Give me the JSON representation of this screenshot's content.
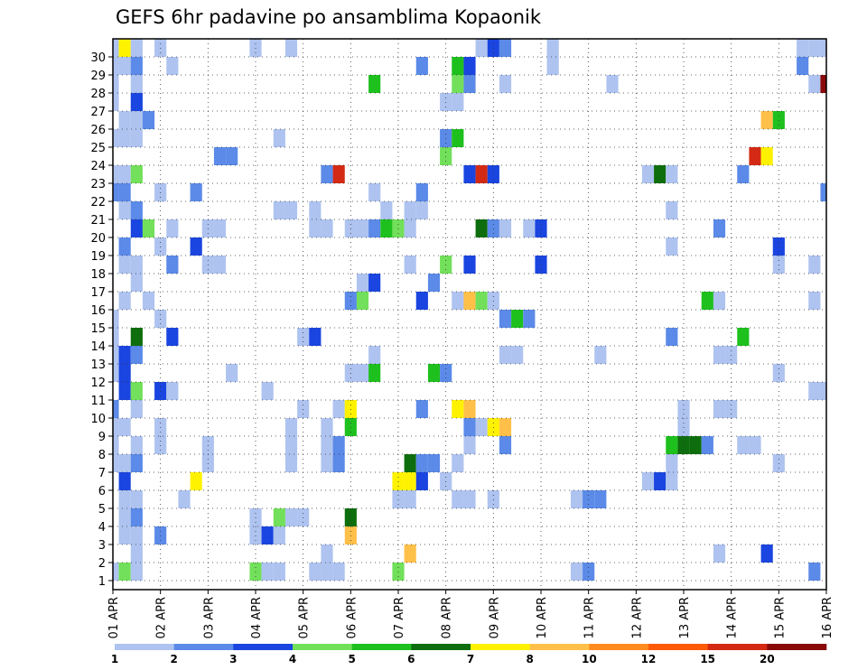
{
  "chart_data": {
    "type": "heatmap",
    "title": "GEFS 6hr padavine po ansamblima Kopaonik",
    "xlabel": "",
    "ylabel": "",
    "x_tick_labels": [
      "01 APR",
      "02 APR",
      "03 APR",
      "04 APR",
      "05 APR",
      "06 APR",
      "07 APR",
      "08 APR",
      "09 APR",
      "10 APR",
      "11 APR",
      "12 APR",
      "13 APR",
      "14 APR",
      "15 APR",
      "16 APR"
    ],
    "y_tick_labels": [
      "1",
      "2",
      "3",
      "4",
      "5",
      "6",
      "7",
      "8",
      "9",
      "10",
      "11",
      "12",
      "13",
      "14",
      "15",
      "16",
      "17",
      "18",
      "19",
      "20",
      "21",
      "22",
      "23",
      "24",
      "25",
      "26",
      "27",
      "28",
      "29",
      "30"
    ],
    "x_range_days": [
      0,
      15
    ],
    "y_range_member": [
      0,
      30
    ],
    "step_hours": 6,
    "grid": "dotted",
    "legend_placement": "bottom",
    "legend": {
      "labels": [
        "1",
        "2",
        "3",
        "4",
        "5",
        "6",
        "7",
        "8",
        "10",
        "12",
        "15",
        "20"
      ],
      "colors": [
        "#aec3f0",
        "#5b8ae8",
        "#1a45e0",
        "#72e05a",
        "#1ec01e",
        "#0e6e0e",
        "#fff200",
        "#ffc04a",
        "#ff8a1e",
        "#ff5a0a",
        "#d42a14",
        "#8a0a0a"
      ]
    },
    "cells": [
      {
        "m": 30,
        "s": [
          [
            1,
            1
          ],
          [
            2,
            7
          ],
          [
            3,
            1
          ],
          [
            5,
            1
          ],
          [
            13,
            1
          ],
          [
            16,
            1
          ],
          [
            32,
            1
          ],
          [
            33,
            3
          ],
          [
            34,
            2
          ],
          [
            38,
            1
          ],
          [
            59,
            1
          ],
          [
            60,
            1
          ],
          [
            61,
            1
          ]
        ]
      },
      {
        "m": 29,
        "s": [
          [
            1,
            1
          ],
          [
            2,
            1
          ],
          [
            3,
            2
          ],
          [
            6,
            1
          ],
          [
            27,
            2
          ],
          [
            30,
            5
          ],
          [
            31,
            3
          ],
          [
            38,
            1
          ],
          [
            59,
            2
          ]
        ]
      },
      {
        "m": 28,
        "s": [
          [
            1,
            1
          ],
          [
            3,
            1
          ],
          [
            23,
            5
          ],
          [
            30,
            4
          ],
          [
            31,
            2
          ],
          [
            34,
            1
          ],
          [
            43,
            1
          ],
          [
            60,
            1
          ],
          [
            61,
            12
          ]
        ]
      },
      {
        "m": 27,
        "s": [
          [
            1,
            1
          ],
          [
            3,
            3
          ],
          [
            29,
            1
          ],
          [
            30,
            1
          ]
        ]
      },
      {
        "m": 26,
        "s": [
          [
            2,
            1
          ],
          [
            3,
            1
          ],
          [
            4,
            2
          ],
          [
            56,
            8
          ],
          [
            57,
            5
          ]
        ]
      },
      {
        "m": 25,
        "s": [
          [
            1,
            1
          ],
          [
            2,
            1
          ],
          [
            3,
            1
          ],
          [
            15,
            1
          ],
          [
            29,
            2
          ],
          [
            30,
            5
          ]
        ]
      },
      {
        "m": 24,
        "s": [
          [
            10,
            2
          ],
          [
            11,
            2
          ],
          [
            29,
            4
          ],
          [
            55,
            11
          ],
          [
            56,
            7
          ]
        ]
      },
      {
        "m": 23,
        "s": [
          [
            1,
            1
          ],
          [
            2,
            1
          ],
          [
            3,
            4
          ],
          [
            19,
            2
          ],
          [
            20,
            11
          ],
          [
            31,
            3
          ],
          [
            32,
            11
          ],
          [
            33,
            3
          ],
          [
            46,
            1
          ],
          [
            47,
            6
          ],
          [
            48,
            1
          ],
          [
            54,
            2
          ]
        ]
      },
      {
        "m": 22,
        "s": [
          [
            1,
            2
          ],
          [
            2,
            2
          ],
          [
            5,
            1
          ],
          [
            8,
            2
          ],
          [
            23,
            1
          ],
          [
            27,
            2
          ],
          [
            61,
            2
          ]
        ]
      },
      {
        "m": 21,
        "s": [
          [
            2,
            1
          ],
          [
            3,
            2
          ],
          [
            15,
            1
          ],
          [
            16,
            1
          ],
          [
            18,
            1
          ],
          [
            24,
            1
          ],
          [
            26,
            1
          ],
          [
            27,
            1
          ],
          [
            48,
            1
          ]
        ]
      },
      {
        "m": 20,
        "s": [
          [
            3,
            3
          ],
          [
            4,
            4
          ],
          [
            6,
            1
          ],
          [
            9,
            1
          ],
          [
            10,
            1
          ],
          [
            18,
            1
          ],
          [
            19,
            1
          ],
          [
            21,
            1
          ],
          [
            22,
            1
          ],
          [
            23,
            2
          ],
          [
            24,
            5
          ],
          [
            25,
            4
          ],
          [
            26,
            1
          ],
          [
            32,
            6
          ],
          [
            33,
            2
          ],
          [
            34,
            1
          ],
          [
            36,
            1
          ],
          [
            37,
            3
          ],
          [
            52,
            2
          ]
        ]
      },
      {
        "m": 19,
        "s": [
          [
            2,
            2
          ],
          [
            5,
            1
          ],
          [
            8,
            3
          ],
          [
            48,
            1
          ],
          [
            57,
            3
          ]
        ]
      },
      {
        "m": 18,
        "s": [
          [
            2,
            1
          ],
          [
            3,
            1
          ],
          [
            6,
            2
          ],
          [
            9,
            1
          ],
          [
            10,
            1
          ],
          [
            26,
            1
          ],
          [
            29,
            4
          ],
          [
            31,
            3
          ],
          [
            37,
            3
          ],
          [
            57,
            1
          ],
          [
            60,
            1
          ]
        ]
      },
      {
        "m": 17,
        "s": [
          [
            3,
            1
          ],
          [
            22,
            1
          ],
          [
            23,
            3
          ],
          [
            28,
            2
          ]
        ]
      },
      {
        "m": 16,
        "s": [
          [
            2,
            1
          ],
          [
            4,
            1
          ],
          [
            21,
            2
          ],
          [
            22,
            4
          ],
          [
            27,
            3
          ],
          [
            30,
            1
          ],
          [
            31,
            8
          ],
          [
            32,
            4
          ],
          [
            33,
            1
          ],
          [
            51,
            5
          ],
          [
            52,
            1
          ],
          [
            60,
            1
          ]
        ]
      },
      {
        "m": 15,
        "s": [
          [
            1,
            1
          ],
          [
            5,
            1
          ],
          [
            34,
            2
          ],
          [
            35,
            5
          ],
          [
            36,
            2
          ]
        ]
      },
      {
        "m": 14,
        "s": [
          [
            1,
            1
          ],
          [
            3,
            6
          ],
          [
            6,
            3
          ],
          [
            17,
            1
          ],
          [
            18,
            3
          ],
          [
            48,
            2
          ],
          [
            54,
            5
          ]
        ]
      },
      {
        "m": 13,
        "s": [
          [
            1,
            1
          ],
          [
            2,
            3
          ],
          [
            3,
            2
          ],
          [
            23,
            1
          ],
          [
            34,
            1
          ],
          [
            35,
            1
          ],
          [
            42,
            1
          ],
          [
            52,
            1
          ],
          [
            53,
            1
          ]
        ]
      },
      {
        "m": 12,
        "s": [
          [
            1,
            1
          ],
          [
            2,
            3
          ],
          [
            11,
            1
          ],
          [
            21,
            1
          ],
          [
            22,
            1
          ],
          [
            23,
            5
          ],
          [
            28,
            5
          ],
          [
            29,
            2
          ],
          [
            57,
            1
          ]
        ]
      },
      {
        "m": 11,
        "s": [
          [
            2,
            3
          ],
          [
            3,
            4
          ],
          [
            5,
            3
          ],
          [
            6,
            1
          ],
          [
            14,
            1
          ],
          [
            60,
            1
          ],
          [
            61,
            1
          ]
        ]
      },
      {
        "m": 10,
        "s": [
          [
            1,
            2
          ],
          [
            3,
            1
          ],
          [
            17,
            1
          ],
          [
            20,
            1
          ],
          [
            21,
            7
          ],
          [
            27,
            2
          ],
          [
            30,
            7
          ],
          [
            31,
            8
          ],
          [
            49,
            1
          ],
          [
            52,
            1
          ],
          [
            53,
            1
          ]
        ]
      },
      {
        "m": 9,
        "s": [
          [
            1,
            1
          ],
          [
            2,
            1
          ],
          [
            5,
            1
          ],
          [
            16,
            1
          ],
          [
            19,
            1
          ],
          [
            21,
            5
          ],
          [
            31,
            2
          ],
          [
            32,
            1
          ],
          [
            33,
            7
          ],
          [
            34,
            8
          ],
          [
            49,
            1
          ]
        ]
      },
      {
        "m": 8,
        "s": [
          [
            1,
            1
          ],
          [
            3,
            1
          ],
          [
            5,
            1
          ],
          [
            9,
            1
          ],
          [
            16,
            1
          ],
          [
            19,
            1
          ],
          [
            20,
            2
          ],
          [
            31,
            1
          ],
          [
            34,
            2
          ],
          [
            48,
            5
          ],
          [
            49,
            6
          ],
          [
            50,
            6
          ],
          [
            51,
            2
          ],
          [
            54,
            1
          ],
          [
            55,
            1
          ]
        ]
      },
      {
        "m": 7,
        "s": [
          [
            1,
            1
          ],
          [
            2,
            1
          ],
          [
            3,
            2
          ],
          [
            9,
            1
          ],
          [
            16,
            1
          ],
          [
            19,
            1
          ],
          [
            20,
            2
          ],
          [
            26,
            6
          ],
          [
            27,
            2
          ],
          [
            28,
            2
          ],
          [
            30,
            1
          ],
          [
            48,
            1
          ],
          [
            57,
            1
          ]
        ]
      },
      {
        "m": 6,
        "s": [
          [
            2,
            3
          ],
          [
            8,
            7
          ],
          [
            25,
            7
          ],
          [
            26,
            7
          ],
          [
            27,
            3
          ],
          [
            29,
            1
          ],
          [
            46,
            1
          ],
          [
            47,
            3
          ],
          [
            48,
            1
          ]
        ]
      },
      {
        "m": 5,
        "s": [
          [
            2,
            1
          ],
          [
            3,
            1
          ],
          [
            7,
            1
          ],
          [
            25,
            1
          ],
          [
            26,
            1
          ],
          [
            30,
            1
          ],
          [
            31,
            1
          ],
          [
            33,
            1
          ],
          [
            40,
            1
          ],
          [
            41,
            2
          ],
          [
            42,
            2
          ]
        ]
      },
      {
        "m": 4,
        "s": [
          [
            2,
            1
          ],
          [
            3,
            2
          ],
          [
            13,
            1
          ],
          [
            15,
            4
          ],
          [
            16,
            1
          ],
          [
            17,
            1
          ],
          [
            21,
            6
          ]
        ]
      },
      {
        "m": 3,
        "s": [
          [
            2,
            1
          ],
          [
            3,
            1
          ],
          [
            5,
            2
          ],
          [
            13,
            1
          ],
          [
            14,
            3
          ],
          [
            15,
            1
          ],
          [
            21,
            8
          ]
        ]
      },
      {
        "m": 2,
        "s": [
          [
            3,
            1
          ],
          [
            19,
            1
          ],
          [
            26,
            8
          ],
          [
            52,
            1
          ],
          [
            56,
            3
          ]
        ]
      },
      {
        "m": 1,
        "s": [
          [
            1,
            1
          ],
          [
            2,
            4
          ],
          [
            3,
            1
          ],
          [
            13,
            4
          ],
          [
            14,
            1
          ],
          [
            15,
            1
          ],
          [
            18,
            1
          ],
          [
            19,
            1
          ],
          [
            20,
            1
          ],
          [
            25,
            4
          ],
          [
            40,
            1
          ],
          [
            41,
            2
          ],
          [
            60,
            2
          ]
        ]
      }
    ]
  }
}
